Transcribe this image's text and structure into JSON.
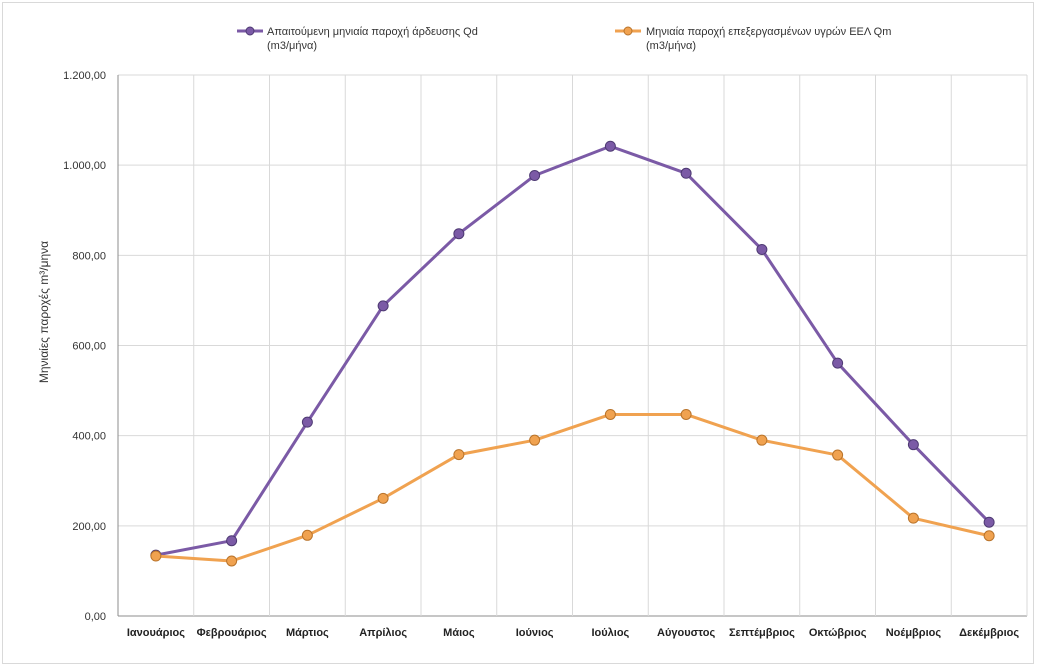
{
  "chart_data": {
    "type": "line",
    "title": "",
    "xlabel": "",
    "ylabel": "Μηνιαίες παροχές m³/μηνα",
    "ylim": [
      0,
      1200
    ],
    "yticks": [
      "0,00",
      "200,00",
      "400,00",
      "600,00",
      "800,00",
      "1.000,00",
      "1.200,00"
    ],
    "ytick_values": [
      0,
      200,
      400,
      600,
      800,
      1000,
      1200
    ],
    "grid": true,
    "legend_position": "top",
    "categories": [
      "Ιανουάριος",
      "Φεβρουάριος",
      "Μάρτιος",
      "Απρίλιος",
      "Μάιος",
      "Ιούνιος",
      "Ιούλιος",
      "Αύγουστος",
      "Σεπτέμβριος",
      "Οκτώβριος",
      "Νοέμβριος",
      "Δεκέμβριος"
    ],
    "series": [
      {
        "name_line1": "Απαιτούμενη μηνιαία παροχή άρδευσης Qd",
        "name_line2": "(m3/μήνα)",
        "color": "#7b5aa6",
        "values": [
          135,
          167,
          430,
          688,
          848,
          977,
          1042,
          982,
          813,
          561,
          380,
          208
        ]
      },
      {
        "name_line1": "Μηνιαία παροχή επεξεργασμένων υγρών ΕΕΛ Qm",
        "name_line2": "(m3/μήνα)",
        "color": "#f0a250",
        "values": [
          133,
          122,
          179,
          261,
          358,
          390,
          447,
          447,
          390,
          357,
          217,
          178
        ]
      }
    ]
  }
}
